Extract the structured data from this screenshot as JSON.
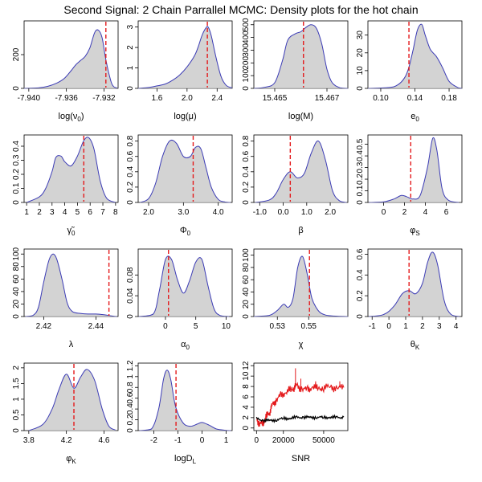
{
  "figure": {
    "title": "Second Signal: 2 Chain Parrallel MCMC: Density plots for the hot chain"
  },
  "colors": {
    "fill": "#d3d3d3",
    "density_line": "#3b3bb5",
    "reference_line": "#e41a1c",
    "chain_a": "#e41a1c",
    "chain_b": "#000000"
  },
  "chart_data": [
    {
      "type": "area",
      "xlabel": "log(ν0)",
      "xlabel_main": "log(ν",
      "xlabel_sub": "0",
      "xlabel_tail": ")",
      "xlim": [
        -7.9405,
        -7.9305
      ],
      "ylim": [
        0,
        400
      ],
      "xticks": [
        -7.94,
        -7.936,
        -7.932
      ],
      "xtick_labels": [
        "-7.940",
        "-7.936",
        "-7.932"
      ],
      "yticks": [
        0,
        200
      ],
      "vline": -7.9318,
      "x": [
        -7.9405,
        -7.939,
        -7.938,
        -7.937,
        -7.9362,
        -7.9355,
        -7.935,
        -7.9345,
        -7.934,
        -7.9335,
        -7.933,
        -7.9326,
        -7.9322,
        -7.9318,
        -7.9313,
        -7.931,
        -7.9306
      ],
      "y": [
        0,
        3,
        12,
        32,
        60,
        105,
        140,
        165,
        190,
        240,
        330,
        345,
        300,
        170,
        50,
        12,
        2
      ]
    },
    {
      "type": "area",
      "xlabel": "log(μ)",
      "xlabel_main": "log(μ)",
      "xlabel_sub": "",
      "xlabel_tail": "",
      "xlim": [
        1.35,
        2.6
      ],
      "ylim": [
        0,
        3.3
      ],
      "xticks": [
        1.6,
        2.0,
        2.4
      ],
      "xtick_labels": [
        "1.6",
        "2.0",
        "2.4"
      ],
      "yticks": [
        0,
        1,
        2,
        3
      ],
      "vline": 2.27,
      "x": [
        1.35,
        1.5,
        1.6,
        1.7,
        1.8,
        1.9,
        2.0,
        2.1,
        2.15,
        2.2,
        2.25,
        2.28,
        2.32,
        2.38,
        2.45,
        2.52,
        2.6
      ],
      "y": [
        0,
        0.05,
        0.12,
        0.2,
        0.38,
        0.65,
        1.05,
        1.6,
        2.05,
        2.6,
        2.95,
        3.0,
        2.6,
        1.6,
        0.6,
        0.15,
        0.02
      ]
    },
    {
      "type": "area",
      "xlabel": "log(M)",
      "xlabel_main": "log(M)",
      "xlabel_sub": "",
      "xlabel_tail": "",
      "xlim": [
        15.4642,
        15.4678
      ],
      "ylim": [
        0,
        530
      ],
      "xticks": [
        15.465,
        15.467
      ],
      "xtick_labels": [
        "15.465",
        "15.467"
      ],
      "yticks": [
        0,
        100,
        200,
        300,
        400,
        500
      ],
      "vline": 15.4661,
      "x": [
        15.4642,
        15.4646,
        15.465,
        15.4653,
        15.4655,
        15.4658,
        15.466,
        15.4662,
        15.4664,
        15.4666,
        15.4668,
        15.467,
        15.4672,
        15.4675,
        15.4678
      ],
      "y": [
        0,
        8,
        45,
        220,
        380,
        430,
        445,
        480,
        500,
        470,
        350,
        150,
        45,
        5,
        0
      ]
    },
    {
      "type": "area",
      "xlabel": "e0",
      "xlabel_main": "e",
      "xlabel_sub": "0",
      "xlabel_tail": "",
      "xlim": [
        0.085,
        0.195
      ],
      "ylim": [
        0,
        38
      ],
      "xticks": [
        0.1,
        0.14,
        0.18
      ],
      "xtick_labels": [
        "0.10",
        "0.14",
        "0.18"
      ],
      "yticks": [
        0,
        10,
        20,
        30
      ],
      "vline": 0.133,
      "x": [
        0.085,
        0.11,
        0.12,
        0.128,
        0.133,
        0.138,
        0.143,
        0.148,
        0.152,
        0.158,
        0.165,
        0.172,
        0.18,
        0.19,
        0.195
      ],
      "y": [
        0,
        0.5,
        2,
        6,
        12,
        22,
        33,
        36,
        30,
        22,
        18,
        12,
        4,
        0.5,
        0
      ]
    },
    {
      "type": "area",
      "xlabel": "γ̃0",
      "xlabel_main": "γ̃",
      "xlabel_sub": "0",
      "xlabel_tail": "",
      "xlim": [
        0.8,
        8.2
      ],
      "ylim": [
        0,
        0.48
      ],
      "xticks": [
        1,
        2,
        3,
        4,
        5,
        6,
        7,
        8
      ],
      "xtick_labels": [
        "1",
        "2",
        "3",
        "4",
        "5",
        "6",
        "7",
        "8"
      ],
      "yticks": [
        0,
        0.1,
        0.2,
        0.3,
        0.4
      ],
      "vline": 5.5,
      "x": [
        1,
        2,
        2.5,
        3,
        3.3,
        3.7,
        4,
        4.5,
        5,
        5.5,
        5.9,
        6.3,
        6.8,
        7.3,
        8
      ],
      "y": [
        0,
        0.04,
        0.1,
        0.22,
        0.32,
        0.33,
        0.29,
        0.26,
        0.33,
        0.44,
        0.46,
        0.38,
        0.15,
        0.03,
        0
      ]
    },
    {
      "type": "area",
      "xlabel": "Φ0",
      "xlabel_main": "Φ",
      "xlabel_sub": "0",
      "xlabel_tail": "",
      "xlim": [
        1.7,
        4.4
      ],
      "ylim": [
        0,
        0.88
      ],
      "xticks": [
        2.0,
        3.0,
        4.0
      ],
      "xtick_labels": [
        "2.0",
        "3.0",
        "4.0"
      ],
      "yticks": [
        0,
        0.2,
        0.4,
        0.6,
        0.8
      ],
      "vline": 3.28,
      "x": [
        1.75,
        2.0,
        2.2,
        2.4,
        2.6,
        2.8,
        3.0,
        3.2,
        3.35,
        3.5,
        3.65,
        3.8,
        4.0,
        4.2,
        4.35
      ],
      "y": [
        0,
        0.05,
        0.25,
        0.6,
        0.8,
        0.77,
        0.6,
        0.6,
        0.72,
        0.7,
        0.45,
        0.2,
        0.04,
        0.005,
        0
      ]
    },
    {
      "type": "area",
      "xlabel": "β",
      "xlabel_main": "β",
      "xlabel_sub": "",
      "xlabel_tail": "",
      "xlim": [
        -1.25,
        2.75
      ],
      "ylim": [
        0,
        0.88
      ],
      "xticks": [
        -1,
        0,
        1,
        2
      ],
      "xtick_labels": [
        "-1.0",
        "0.0",
        "1.0",
        "2.0"
      ],
      "yticks": [
        0,
        0.2,
        0.4,
        0.6,
        0.8
      ],
      "vline": 0.3,
      "x": [
        -1.2,
        -0.6,
        -0.3,
        0,
        0.3,
        0.6,
        0.9,
        1.2,
        1.5,
        1.8,
        2.1,
        2.4,
        2.7
      ],
      "y": [
        0,
        0.03,
        0.12,
        0.3,
        0.4,
        0.32,
        0.38,
        0.65,
        0.8,
        0.55,
        0.15,
        0.02,
        0
      ]
    },
    {
      "type": "area",
      "xlabel": "φS",
      "xlabel_main": "φ",
      "xlabel_sub": "S",
      "xlabel_tail": "",
      "xlim": [
        -1.5,
        7.5
      ],
      "ylim": [
        0,
        0.58
      ],
      "xticks": [
        0,
        2,
        4,
        6
      ],
      "xtick_labels": [
        "0",
        "2",
        "4",
        "6"
      ],
      "yticks": [
        0,
        0.1,
        0.2,
        0.3,
        0.4,
        0.5
      ],
      "vline": 2.6,
      "x": [
        -1.4,
        0,
        1,
        1.7,
        2.2,
        2.8,
        3.5,
        4.2,
        4.7,
        5.1,
        5.6,
        6.2,
        7.2
      ],
      "y": [
        0,
        0.005,
        0.03,
        0.06,
        0.05,
        0.03,
        0.06,
        0.3,
        0.55,
        0.45,
        0.12,
        0.02,
        0
      ]
    },
    {
      "type": "area",
      "xlabel": "λ",
      "xlabel_main": "λ",
      "xlabel_sub": "",
      "xlabel_tail": "",
      "xlim": [
        2.4125,
        2.4485
      ],
      "ylim": [
        0,
        108
      ],
      "xticks": [
        2.42,
        2.44
      ],
      "xtick_labels": [
        "2.42",
        "2.44"
      ],
      "yticks": [
        0,
        20,
        40,
        60,
        80,
        100
      ],
      "vline": 2.445,
      "x": [
        2.413,
        2.416,
        2.418,
        2.42,
        2.422,
        2.4235,
        2.425,
        2.427,
        2.429,
        2.431,
        2.434,
        2.437,
        2.44,
        2.443,
        2.446,
        2.448
      ],
      "y": [
        0,
        2,
        15,
        55,
        90,
        100,
        92,
        60,
        22,
        8,
        5,
        4,
        4,
        3,
        1,
        0
      ]
    },
    {
      "type": "area",
      "xlabel": "α0",
      "xlabel_main": "α",
      "xlabel_sub": "0",
      "xlabel_tail": "",
      "xlim": [
        -4.5,
        11
      ],
      "ylim": [
        0,
        0.13
      ],
      "xticks": [
        0,
        5,
        10
      ],
      "xtick_labels": [
        "0",
        "5",
        "10"
      ],
      "yticks": [
        0,
        0.04,
        0.08
      ],
      "vline": 0.5,
      "x": [
        -4.4,
        -2,
        -1,
        0,
        1,
        2,
        3,
        4,
        5,
        6,
        7,
        8,
        9,
        10.5
      ],
      "y": [
        0,
        0.005,
        0.05,
        0.11,
        0.11,
        0.07,
        0.045,
        0.07,
        0.105,
        0.11,
        0.06,
        0.015,
        0.002,
        0
      ]
    },
    {
      "type": "area",
      "xlabel": "χ",
      "xlabel_main": "χ",
      "xlabel_sub": "",
      "xlabel_tail": "",
      "xlim": [
        0.515,
        0.575
      ],
      "ylim": [
        0,
        110
      ],
      "xticks": [
        0.53,
        0.55
      ],
      "xtick_labels": [
        "0.53",
        "0.55"
      ],
      "yticks": [
        0,
        20,
        40,
        60,
        80,
        100
      ],
      "vline": 0.5505,
      "x": [
        0.515,
        0.525,
        0.53,
        0.534,
        0.537,
        0.54,
        0.543,
        0.546,
        0.549,
        0.552,
        0.556,
        0.56,
        0.565,
        0.575
      ],
      "y": [
        0,
        2,
        10,
        20,
        15,
        30,
        80,
        98,
        70,
        30,
        10,
        3,
        1,
        0
      ]
    },
    {
      "type": "area",
      "xlabel": "θK",
      "xlabel_main": "θ",
      "xlabel_sub": "K",
      "xlabel_tail": "",
      "xlim": [
        -1.25,
        4.35
      ],
      "ylim": [
        0,
        0.65
      ],
      "xticks": [
        -1,
        0,
        1,
        2,
        3,
        4
      ],
      "xtick_labels": [
        "-1",
        "0",
        "1",
        "2",
        "3",
        "4"
      ],
      "yticks": [
        0,
        0.2,
        0.4,
        0.6
      ],
      "vline": 1.2,
      "x": [
        -1.2,
        -0.3,
        0.3,
        0.8,
        1.2,
        1.6,
        2.0,
        2.3,
        2.6,
        2.9,
        3.3,
        3.7,
        4.2
      ],
      "y": [
        0,
        0.02,
        0.1,
        0.22,
        0.25,
        0.22,
        0.32,
        0.52,
        0.62,
        0.5,
        0.15,
        0.02,
        0
      ]
    },
    {
      "type": "area",
      "xlabel": "φK",
      "xlabel_main": "φ",
      "xlabel_sub": "K",
      "xlabel_tail": "",
      "xlim": [
        3.75,
        4.75
      ],
      "ylim": [
        0,
        2.15
      ],
      "xticks": [
        3.8,
        4.2,
        4.6
      ],
      "xtick_labels": [
        "3.8",
        "4.2",
        "4.6"
      ],
      "yticks": [
        0,
        0.5,
        1.0,
        1.5,
        2.0
      ],
      "vline": 4.28,
      "x": [
        3.8,
        3.95,
        4.05,
        4.12,
        4.2,
        4.28,
        4.35,
        4.42,
        4.5,
        4.58,
        4.65,
        4.72
      ],
      "y": [
        0,
        0.2,
        0.7,
        1.3,
        1.8,
        1.35,
        1.7,
        1.95,
        1.6,
        0.7,
        0.15,
        0.02
      ]
    },
    {
      "type": "area",
      "xlabel": "logDL",
      "xlabel_main": "logD",
      "xlabel_sub": "L",
      "xlabel_tail": "",
      "xlim": [
        -2.65,
        1.25
      ],
      "ylim": [
        0,
        1.25
      ],
      "xticks": [
        -2,
        -1,
        0,
        1
      ],
      "xtick_labels": [
        "-2",
        "-1",
        "0",
        "1"
      ],
      "yticks": [
        0,
        0.2,
        0.4,
        0.6,
        0.8,
        1.0,
        1.2
      ],
      "vline": -1.08,
      "x": [
        -2.6,
        -2.1,
        -1.8,
        -1.6,
        -1.45,
        -1.3,
        -1.1,
        -0.8,
        -0.5,
        -0.2,
        0,
        0.3,
        0.6,
        1.0,
        1.2
      ],
      "y": [
        0,
        0.03,
        0.4,
        0.95,
        1.12,
        0.95,
        0.45,
        0.15,
        0.08,
        0.12,
        0.15,
        0.1,
        0.03,
        0.005,
        0
      ]
    },
    {
      "type": "line",
      "xlabel": "SNR",
      "xlabel_main": "SNR",
      "xlabel_sub": "",
      "xlabel_tail": "",
      "xlim": [
        -2000,
        68000
      ],
      "ylim": [
        -0.5,
        12.5
      ],
      "xticks": [
        0,
        20000,
        50000
      ],
      "xtick_labels": [
        "0",
        "20000",
        "50000"
      ],
      "yticks": [
        0,
        2,
        4,
        6,
        8,
        10,
        12
      ],
      "ytick_labels": [
        "0",
        "2",
        "4",
        "6",
        "8",
        "10",
        "12"
      ],
      "series": [
        {
          "color": "#e41a1c",
          "x": [
            0,
            2000,
            4000,
            6000,
            8000,
            10000,
            12000,
            15000,
            18000,
            22000,
            26000,
            28000,
            30000,
            34000,
            38000,
            42000,
            46000,
            50000,
            55000,
            60000,
            65000
          ],
          "y": [
            1.5,
            1.0,
            0.6,
            1.5,
            2.5,
            3.2,
            4.5,
            5.5,
            6.2,
            7.0,
            7.4,
            7.8,
            8.2,
            7.5,
            7.3,
            8.0,
            7.6,
            7.8,
            7.9,
            7.7,
            7.8
          ],
          "spikes": [
            [
              29000,
              11.5
            ],
            [
              33000,
              9.5
            ],
            [
              44000,
              9.0
            ],
            [
              62000,
              9.0
            ]
          ]
        },
        {
          "color": "#000000",
          "x": [
            0,
            5000,
            10000,
            15000,
            20000,
            25000,
            30000,
            35000,
            40000,
            45000,
            50000,
            55000,
            60000,
            65000
          ],
          "y": [
            1.8,
            1.5,
            1.4,
            1.6,
            1.8,
            1.9,
            2.0,
            2.1,
            2.0,
            2.1,
            2.0,
            2.1,
            2.0,
            2.1
          ]
        }
      ]
    }
  ]
}
